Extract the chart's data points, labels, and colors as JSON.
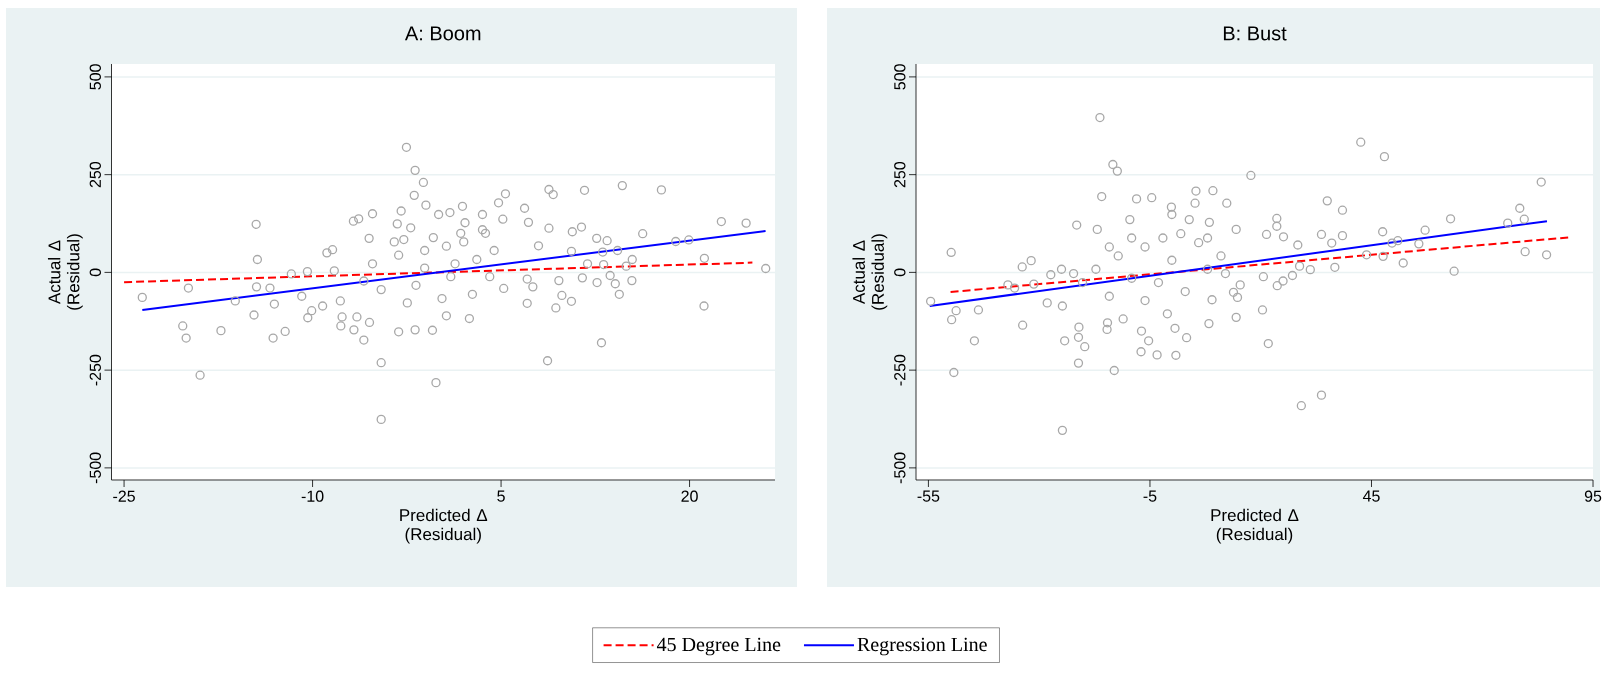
{
  "chart_data": [
    {
      "type": "scatter",
      "title": "A: Boom",
      "xlabel": "Predicted Δ (Residual)",
      "ylabel": "Actual Δ (Residual)",
      "xlim": [
        -26,
        26.8
      ],
      "ylim": [
        -531,
        533
      ],
      "xticks": [
        -25,
        -10,
        5,
        20
      ],
      "yticks": [
        -500,
        -250,
        0,
        250,
        500
      ],
      "grid": "y",
      "legend": "bottom",
      "series": [
        {
          "marker": "circle",
          "color": "#a8a8a8",
          "x": [
            -2.53,
            -1.84,
            -1.18,
            -1.91,
            -23.55,
            -19.88,
            -20.33,
            -20.06,
            -18.95,
            -17.29,
            -16.15,
            -14.49,
            -14.39,
            -14.46,
            -14.66,
            -13.39,
            -13.04,
            -13.14,
            -12.18,
            -11.69,
            -10.86,
            -10.41,
            -10.38,
            -10.07,
            -9.2,
            -8.86,
            -8.41,
            -8.27,
            -7.79,
            -7.65,
            -7.75,
            -6.71,
            -6.47,
            -6.75,
            -6.33,
            -5.23,
            -5.92,
            -5.47,
            -4.54,
            -4.54,
            -2.95,
            -3.26,
            -3.15,
            -1.84,
            -0.46,
            -0.18,
            0.65,
            -0.98,
            1.93,
            3.52,
            4.8,
            5.35,
            5.14,
            2.48,
            5.21,
            6.87,
            7.18,
            8.81,
            9.15,
            8.81,
            7.98,
            7.08,
            7.08,
            7.53,
            9.6,
            9.36,
            9.84,
            10.6,
            8.7,
            10.6,
            10.67,
            11.4,
            11.64,
            11.47,
            11.88,
            12.64,
            12.61,
            13.09,
            13.44,
            13.16,
            13.68,
            14.09,
            14.41,
            12.99,
            14.27,
            14.65,
            14.96,
            15.41,
            15.44,
            16.27,
            17.76,
            18.9,
            19.94,
            21.15,
            21.18,
            22.53,
            24.5,
            26.06,
            -5.23,
            -3.15,
            -1.08,
            1.0,
            3.07,
            4.45,
            -4.54,
            -2.46,
            0.3,
            2.03,
            -0.39,
            -5.92,
            3.76,
            -1.77,
            1.34,
            -3.5,
            2.72,
            4.1,
            -1.08,
            0.65,
            2.13,
            1.79,
            0.93,
            0.03,
            -2.19,
            -5.5,
            -2.74,
            3.52
          ],
          "values": [
            320,
            261,
            230,
            197,
            -64,
            -40,
            -137,
            -168,
            -263,
            -149,
            -73,
            123,
            33,
            -37,
            -109,
            -40,
            -81,
            -168,
            -151,
            -4,
            -61,
            2,
            -116,
            -98,
            -86,
            50,
            58,
            4,
            -73,
            -114,
            -137,
            -147,
            -114,
            131,
            137,
            150,
            -173,
            -128,
            -231,
            -376,
            157,
            124,
            -152,
            -147,
            -148,
            -282,
            -111,
            172,
            169,
            148,
            178,
            201,
            136,
            -118,
            -41,
            164,
            128,
            212,
            199,
            113,
            68,
            -17,
            -79,
            -37,
            -21,
            -91,
            -59,
            -74,
            -226,
            54,
            104,
            116,
            210,
            -14,
            22,
            -26,
            87,
            52,
            81,
            20,
            -8,
            -29,
            -56,
            -180,
            56,
            222,
            16,
            -21,
            33,
            99,
            211,
            79,
            83,
            -86,
            36,
            130,
            126,
            10,
            22,
            44,
            11,
            -11,
            33,
            56,
            -44,
            -78,
            -67,
            78,
            89,
            -22,
            100,
            -33,
            22,
            78,
            -56,
            -11,
            56,
            67,
            127,
            100,
            153,
            148,
            114,
            87,
            84,
            109
          ]
        },
        {
          "type": "line",
          "name": "45 Degree Line",
          "color": "#ff0000",
          "line_style": "dashed",
          "x": [
            -25,
            25
          ],
          "values": [
            -25,
            25
          ]
        },
        {
          "type": "line",
          "name": "Regression Line",
          "color": "#0000ff",
          "line_style": "solid",
          "x": [
            -23.55,
            26.05
          ],
          "values": [
            -96,
            106
          ]
        }
      ]
    },
    {
      "type": "scatter",
      "title": "B: Bust",
      "xlabel": "Predicted Δ (Residual)",
      "ylabel": "Actual Δ (Residual)",
      "xlim": [
        -57.8,
        95
      ],
      "ylim": [
        -531,
        533
      ],
      "xticks": [
        -55,
        -5,
        45,
        95
      ],
      "yticks": [
        -500,
        -250,
        0,
        250,
        500
      ],
      "grid": "y",
      "series": [
        {
          "marker": "circle",
          "color": "#a8a8a8",
          "x": [
            -16.29,
            -13.37,
            -12.36,
            -15.89,
            -8.02,
            -4.6,
            5.38,
            9.21,
            5.18,
            12.34,
            17.78,
            -0.06,
            -0.16,
            -21.53,
            -16.89,
            -9.54,
            3.87,
            8.41,
            14.46,
            23.63,
            23.63,
            21.31,
            25.14,
            28.37,
            35.02,
            38.45,
            33.71,
            38.45,
            36.03,
            42.58,
            47.92,
            47.52,
            43.89,
            47.62,
            49.64,
            50.95,
            52.16,
            55.69,
            57.1,
            62.85,
            63.65,
            75.75,
            78.47,
            79.48,
            79.68,
            83.31,
            84.52,
            36.73,
            31.19,
            28.77,
            27.16,
            23.73,
            25.04,
            20.6,
            20.4,
            21.71,
            29.17,
            33.71,
            -49.86,
            -54.5,
            -49.76,
            -48.75,
            -49.26,
            -43.71,
            -44.62,
            -37.06,
            -35.54,
            -33.83,
            -31.81,
            -33.73,
            -31.21,
            -28.19,
            -27.38,
            -24.96,
            -24.76,
            -24.25,
            -21.03,
            -21.13,
            -19.72,
            -21.13,
            -24.76,
            -13.06,
            -14.68,
            -14.58,
            -11.05,
            -6.91,
            -5.3,
            -7.01,
            -3.39,
            0.85,
            0.65,
            3.27,
            8.31,
            14.46,
            14.76,
            15.37,
            13.85,
            9.01,
            -20.22,
            -17.2,
            -14.17,
            -12.16,
            -9.13,
            -6.11,
            -3.08,
            -0.06,
            2.96,
            5.99,
            8.0,
            11.03,
            -6.11,
            -1.07,
            1.96,
            -2.08,
            -9.13,
            8.0,
            12.04,
            -14.17,
            -22.24
          ],
          "values": [
            396,
            276,
            259,
            194,
            188,
            191,
            208,
            209,
            177,
            177,
            248,
            148,
            167,
            121,
            110,
            135,
            135,
            128,
            110,
            138,
            118,
            97,
            91,
            70,
            183,
            159,
            97,
            94,
            75,
            333,
            296,
            104,
            45,
            41,
            75,
            81,
            24,
            73,
            108,
            137,
            3,
            126,
            164,
            136,
            53,
            231,
            45,
            13,
            7,
            16,
            -8,
            -34,
            -22,
            -11,
            -96,
            -182,
            -341,
            -314,
            51,
            -74,
            -121,
            -98,
            -256,
            -96,
            -175,
            -32,
            -40,
            14,
            30,
            -135,
            -30,
            -78,
            -6,
            8,
            -86,
            -175,
            -140,
            -166,
            -190,
            -232,
            -404,
            -251,
            -146,
            -129,
            -119,
            -150,
            -175,
            -203,
            -211,
            -212,
            -143,
            -167,
            -131,
            -115,
            -64,
            -32,
            -51,
            -70,
            -26,
            8,
            -61,
            42,
            -15,
            65,
            -26,
            31,
            -49,
            76,
            8,
            42,
            -72,
            -106,
            99,
            88,
            88,
            88,
            -3,
            65,
            -3
          ]
        },
        {
          "type": "line",
          "color": "#ff0000",
          "line_style": "dashed",
          "x": [
            -50,
            90
          ],
          "values": [
            -50,
            90
          ]
        },
        {
          "type": "line",
          "color": "#0000ff",
          "line_style": "solid",
          "x": [
            -54.7,
            84.6
          ],
          "values": [
            -86,
            131
          ]
        }
      ]
    }
  ]
}
